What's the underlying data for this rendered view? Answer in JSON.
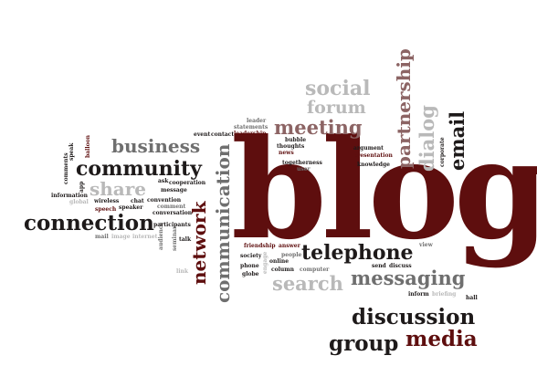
{
  "colors": {
    "dark_red": "#5e0e0e",
    "mauve": "#8c6464",
    "gray": "#6f6f6f",
    "light_gray": "#b9b9b9",
    "near_black": "#1e1a1a"
  },
  "words": {
    "blog": "blog",
    "telephone": "telephone",
    "messaging": "messaging",
    "search": "search",
    "discussion": "discussion",
    "group": "group",
    "media": "media",
    "communication": "communication",
    "network": "network",
    "connection": "connection",
    "community": "community",
    "business": "business",
    "share": "share",
    "meeting": "meeting",
    "forum": "forum",
    "social": "social",
    "partnership": "partnership",
    "dialog": "dialog",
    "email": "email",
    "event": "event",
    "contact": "contact",
    "leader": "leader",
    "statements": "statements",
    "leadership": "leadership",
    "bubble": "bubble",
    "thoughts": "thoughts",
    "news": "news",
    "togetherness": "togetherness",
    "user": "user",
    "argument": "argument",
    "presentation": "presentation",
    "knowledge": "knowledge",
    "corporate": "corporate",
    "ask": "ask",
    "cooperation": "cooperation",
    "message": "message",
    "chat": "chat",
    "convention": "convention",
    "comment": "comment",
    "conversation": "conversation",
    "wireless": "wireless",
    "speaker": "speaker",
    "speech": "speech",
    "information": "information",
    "app": "app",
    "comments": "comments",
    "speak": "speak",
    "balloon": "balloon",
    "global": "global",
    "mail": "mail",
    "internet": "internet",
    "audience": "audience",
    "participants": "participants",
    "seminar": "seminar",
    "talk": "talk",
    "link": "link",
    "image": "image",
    "friendship": "friendship",
    "answer": "answer",
    "society": "society",
    "phone": "phone",
    "globe": "globe",
    "online": "online",
    "column": "column",
    "people": "people",
    "computer": "computer",
    "send": "send",
    "discuss": "discuss",
    "inform": "inform",
    "briefing": "briefing",
    "view": "view",
    "hall": "hall",
    "engage": "engage"
  }
}
